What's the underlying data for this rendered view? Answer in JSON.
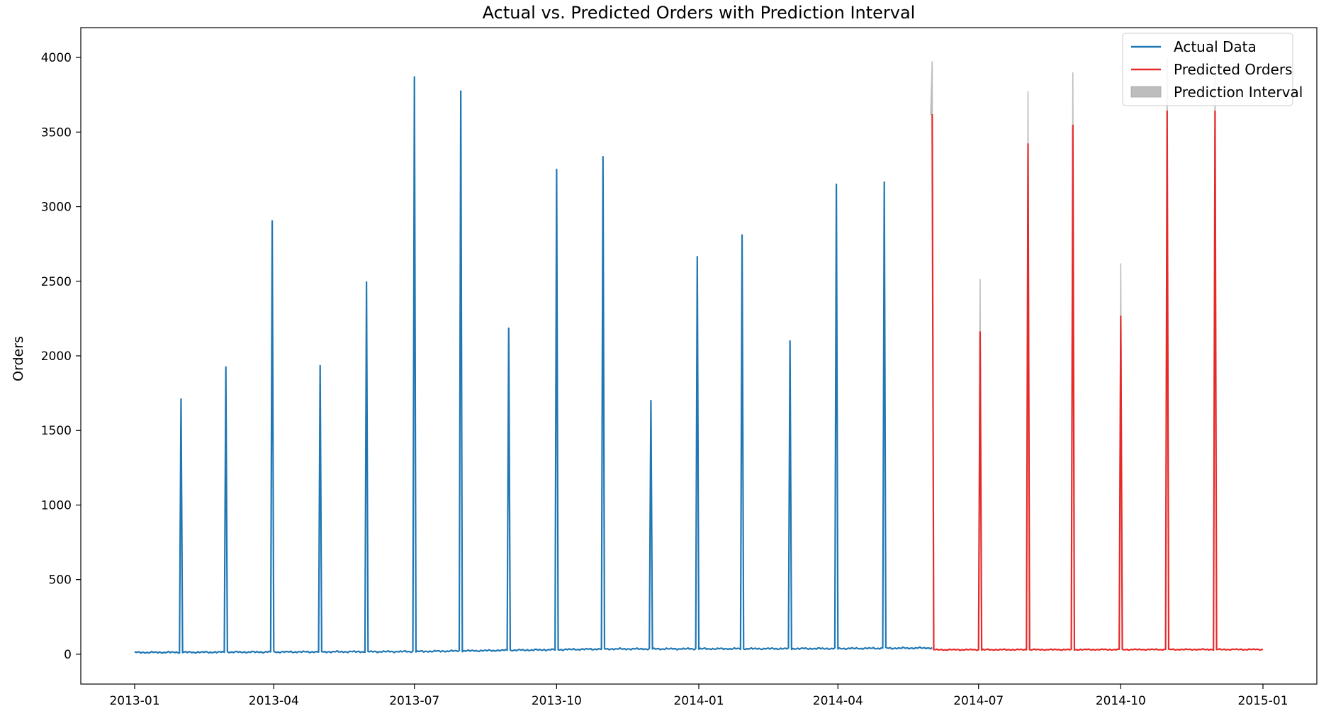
{
  "chart_data": {
    "type": "line",
    "title": "Actual vs. Predicted Orders with Prediction Interval",
    "xlabel": "",
    "ylabel": "Orders",
    "xlim": [
      "2013-01-01",
      "2015-01-01"
    ],
    "ylim": [
      -200,
      4200
    ],
    "x_ticks": [
      "2013-01",
      "2013-04",
      "2013-07",
      "2013-10",
      "2014-01",
      "2014-04",
      "2014-07",
      "2014-10",
      "2015-01"
    ],
    "y_ticks": [
      0,
      500,
      1000,
      1500,
      2000,
      2500,
      3000,
      3500,
      4000
    ],
    "grid": false,
    "legend_position": "top-right",
    "legend": [
      {
        "label": "Actual Data",
        "color": "#1f77b4",
        "kind": "line"
      },
      {
        "label": "Predicted Orders",
        "color": "#e62a2a",
        "kind": "line"
      },
      {
        "label": "Prediction Interval",
        "color": "#bdbdbd",
        "kind": "patch"
      }
    ],
    "series": [
      {
        "name": "Actual Data",
        "color": "#1f77b4",
        "baseline": [
          {
            "date": "2013-01-01",
            "value": 12
          },
          {
            "date": "2013-07-01",
            "value": 18
          },
          {
            "date": "2013-11-01",
            "value": 35
          },
          {
            "date": "2014-04-01",
            "value": 38
          },
          {
            "date": "2014-06-01",
            "value": 42
          }
        ],
        "range": [
          "2013-01-01",
          "2014-06-01"
        ],
        "spikes": [
          {
            "date": "2013-01-31",
            "value": 1710
          },
          {
            "date": "2013-03-01",
            "value": 1925
          },
          {
            "date": "2013-03-31",
            "value": 2905
          },
          {
            "date": "2013-05-01",
            "value": 1935
          },
          {
            "date": "2013-05-31",
            "value": 2495
          },
          {
            "date": "2013-07-01",
            "value": 3870
          },
          {
            "date": "2013-07-31",
            "value": 3775
          },
          {
            "date": "2013-08-31",
            "value": 2185
          },
          {
            "date": "2013-10-01",
            "value": 3250
          },
          {
            "date": "2013-10-31",
            "value": 3335
          },
          {
            "date": "2013-12-01",
            "value": 1700
          },
          {
            "date": "2013-12-31",
            "value": 2665
          },
          {
            "date": "2014-01-29",
            "value": 2810
          },
          {
            "date": "2014-03-01",
            "value": 2100
          },
          {
            "date": "2014-03-31",
            "value": 3150
          },
          {
            "date": "2014-05-01",
            "value": 3165
          }
        ]
      },
      {
        "name": "Predicted Orders",
        "color": "#e62a2a",
        "baseline": [
          {
            "date": "2014-06-01",
            "value": 30
          },
          {
            "date": "2015-01-01",
            "value": 32
          }
        ],
        "range": [
          "2014-06-01",
          "2015-01-01"
        ],
        "spikes": [
          {
            "date": "2014-06-01",
            "value": 3620,
            "upper": 3975
          },
          {
            "date": "2014-07-02",
            "value": 2160,
            "upper": 2515
          },
          {
            "date": "2014-08-02",
            "value": 3420,
            "upper": 3775
          },
          {
            "date": "2014-08-31",
            "value": 3545,
            "upper": 3900
          },
          {
            "date": "2014-10-01",
            "value": 2265,
            "upper": 2620
          },
          {
            "date": "2014-10-31",
            "value": 3640,
            "upper": 3995
          },
          {
            "date": "2014-12-01",
            "value": 3640,
            "upper": 3995
          }
        ]
      }
    ]
  }
}
